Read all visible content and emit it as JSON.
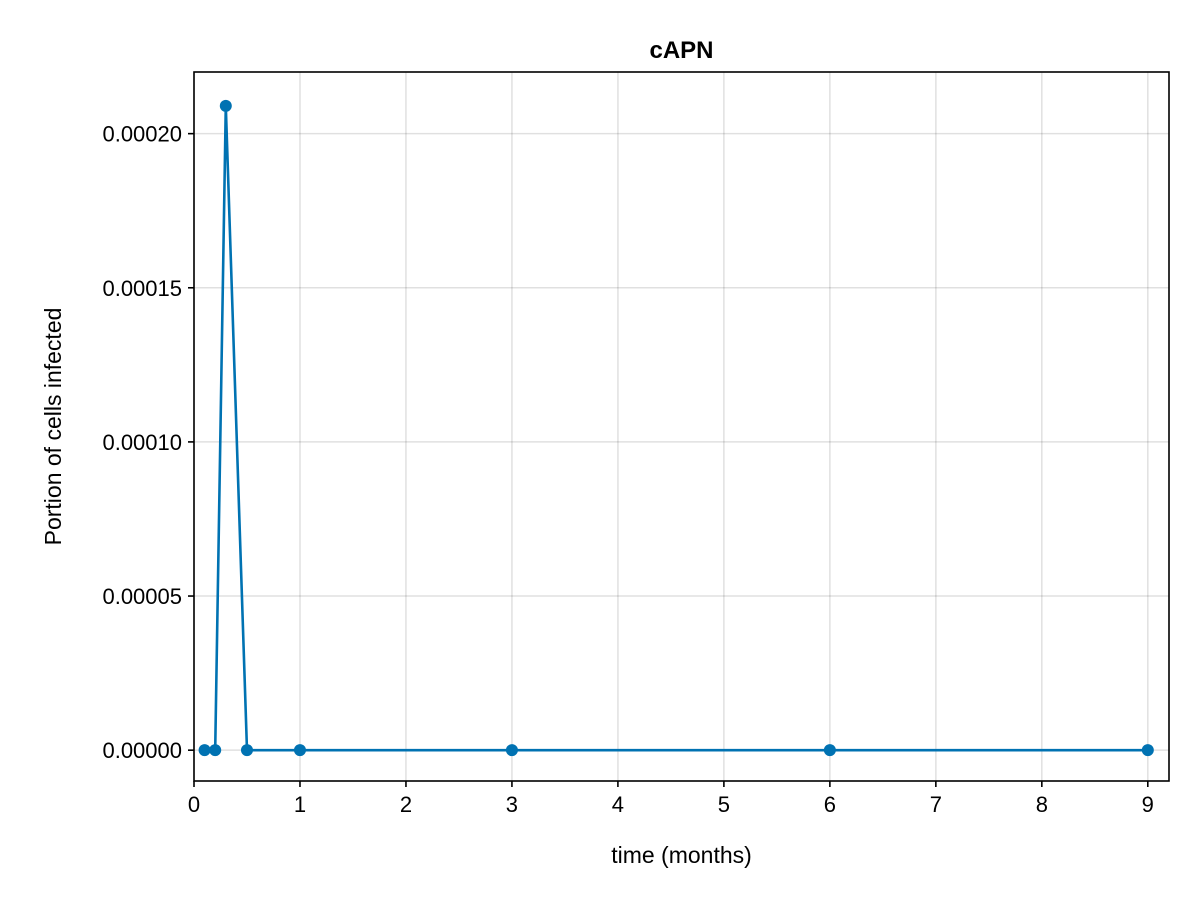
{
  "chart_data": {
    "type": "line",
    "title": "cAPN",
    "xlabel": "time (months)",
    "ylabel": "Portion of cells infected",
    "xlim": [
      0,
      9.2
    ],
    "ylim": [
      -1e-05,
      0.00022
    ],
    "xticks": [
      0,
      1,
      2,
      3,
      4,
      5,
      6,
      7,
      8,
      9
    ],
    "xtick_labels": [
      "0",
      "1",
      "2",
      "3",
      "4",
      "5",
      "6",
      "7",
      "8",
      "9"
    ],
    "yticks": [
      0,
      5e-05,
      0.0001,
      0.00015,
      0.0002
    ],
    "ytick_labels": [
      "0.00000",
      "0.00005",
      "0.00010",
      "0.00015",
      "0.00020"
    ],
    "grid": true,
    "legend": "none",
    "series": [
      {
        "color": "#0072b2",
        "marker": "circle",
        "x": [
          0.1,
          0.2,
          0.3,
          0.5,
          1,
          3,
          6,
          9
        ],
        "y": [
          0,
          0,
          0.000209,
          0,
          0,
          0,
          0,
          0
        ]
      }
    ]
  }
}
